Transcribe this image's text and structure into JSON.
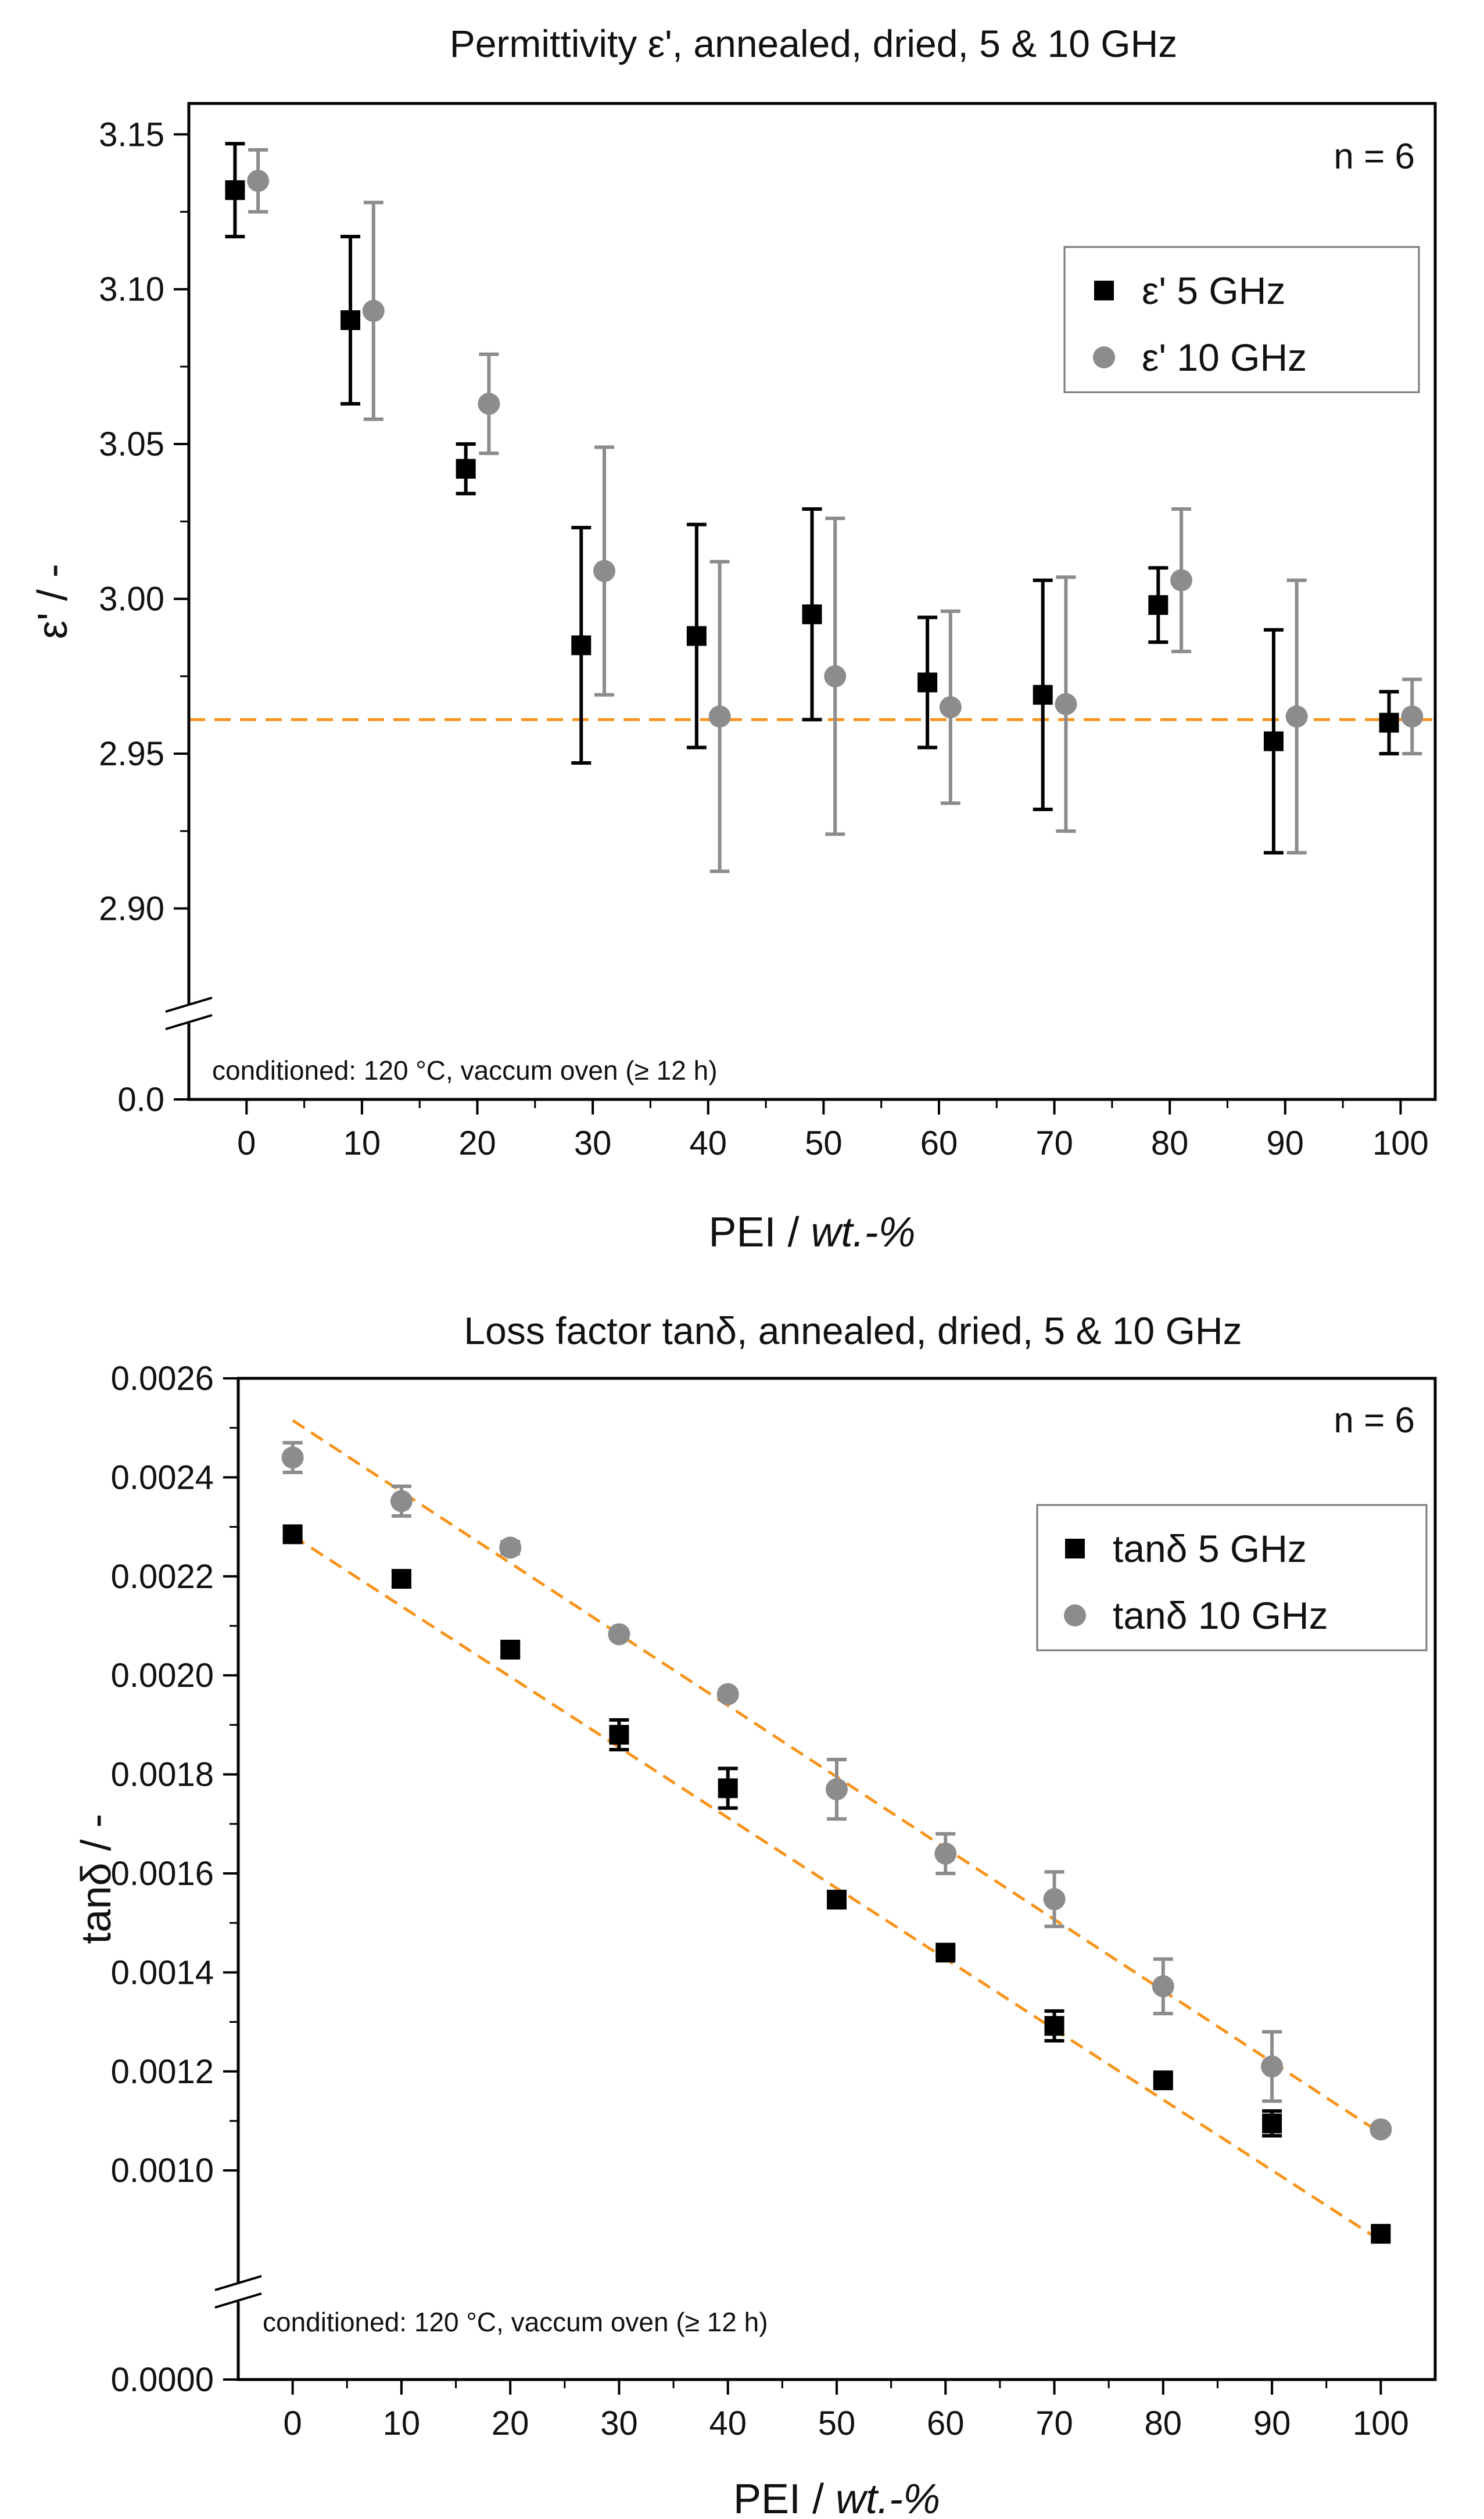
{
  "chart_data": [
    {
      "type": "scatter",
      "title": "Permittivity ε', annealed, dried, 5 & 10 GHz",
      "xlabel_main": "PEI  /  ",
      "xlabel_unit": "wt.-%",
      "ylabel": "ε' / -",
      "xlim": [
        -5,
        103
      ],
      "x_ticks": [
        0,
        10,
        20,
        30,
        40,
        50,
        60,
        70,
        80,
        90,
        100
      ],
      "ylim": [
        2.88,
        3.16
      ],
      "y_ticks": [
        2.9,
        2.95,
        3.0,
        3.05,
        3.1,
        3.15
      ],
      "y_tick_labels": [
        "2.90",
        "2.95",
        "3.00",
        "3.05",
        "3.10",
        "3.15"
      ],
      "y_break_value": 0.0,
      "y_break_label": "0.0",
      "annotation": "conditioned: 120 °C, vaccum oven (≥ 12 h)",
      "n_label": "n = 6",
      "legend_position": "upper-right",
      "reference_line": {
        "y": 2.961,
        "color": "#f7941d"
      },
      "series": [
        {
          "name": "ε'   5 GHz",
          "marker": "square",
          "color": "#000000",
          "x": [
            -1,
            9,
            19,
            29,
            39,
            49,
            59,
            69,
            79,
            89,
            99
          ],
          "values": [
            3.132,
            3.09,
            3.042,
            2.985,
            2.988,
            2.995,
            2.973,
            2.969,
            2.998,
            2.954,
            2.96
          ],
          "errors": [
            0.015,
            0.027,
            0.008,
            0.038,
            0.036,
            0.034,
            0.021,
            0.037,
            0.012,
            0.036,
            0.01
          ]
        },
        {
          "name": "ε' 10 GHz",
          "marker": "circle",
          "color": "#8c8c8c",
          "x": [
            1,
            11,
            21,
            31,
            41,
            51,
            61,
            71,
            81,
            91,
            101
          ],
          "values": [
            3.135,
            3.093,
            3.063,
            3.009,
            2.962,
            2.975,
            2.965,
            2.966,
            3.006,
            2.962,
            2.962
          ],
          "errors": [
            0.01,
            0.035,
            0.016,
            0.04,
            0.05,
            0.051,
            0.031,
            0.041,
            0.023,
            0.044,
            0.012
          ]
        }
      ]
    },
    {
      "type": "scatter",
      "title": "Loss factor tanδ, annealed, dried, 5 & 10 GHz",
      "xlabel_main": "PEI  /  ",
      "xlabel_unit": "wt.-%",
      "ylabel": "tanδ / -",
      "xlim": [
        -5,
        105
      ],
      "x_ticks": [
        0,
        10,
        20,
        30,
        40,
        50,
        60,
        70,
        80,
        90,
        100
      ],
      "ylim": [
        0.00083,
        0.0026
      ],
      "y_ticks": [
        0.001,
        0.0012,
        0.0014,
        0.0016,
        0.0018,
        0.002,
        0.0022,
        0.0024,
        0.0026
      ],
      "y_tick_labels": [
        "0.0010",
        "0.0012",
        "0.0014",
        "0.0016",
        "0.0018",
        "0.0020",
        "0.0022",
        "0.0024",
        "0.0026"
      ],
      "y_break_value": 0.0,
      "y_break_label": "0.0000",
      "annotation": "conditioned: 120 °C, vaccum oven (≥ 12 h)",
      "n_label": "n = 6",
      "legend_position": "upper-right",
      "fit_lines": [
        {
          "series": "5 GHz",
          "x": [
            0,
            100
          ],
          "y": [
            0.002282,
            0.000858
          ],
          "color": "#f7941d"
        },
        {
          "series": "10 GHz",
          "x": [
            0,
            100
          ],
          "y": [
            0.002515,
            0.001075
          ],
          "color": "#f7941d"
        }
      ],
      "series": [
        {
          "name": "tanδ   5 GHz",
          "marker": "square",
          "color": "#000000",
          "x": [
            0,
            10,
            20,
            30,
            40,
            50,
            60,
            70,
            80,
            90,
            100
          ],
          "values": [
            0.002285,
            0.002195,
            0.002052,
            0.00188,
            0.001772,
            0.001547,
            0.00144,
            0.001292,
            0.001182,
            0.001095,
            0.000872
          ],
          "errors": [
            1e-05,
            1.5e-05,
            1.2e-05,
            3e-05,
            4e-05,
            8e-06,
            6e-06,
            3e-05,
            1e-05,
            2.5e-05,
            1.2e-05
          ]
        },
        {
          "name": "tanδ 10 GHz",
          "marker": "circle",
          "color": "#8c8c8c",
          "x": [
            0,
            10,
            20,
            30,
            40,
            50,
            60,
            70,
            80,
            90,
            100
          ],
          "values": [
            0.00244,
            0.002352,
            0.002258,
            0.002083,
            0.001962,
            0.00177,
            0.00164,
            0.001548,
            0.001372,
            0.00121,
            0.001083
          ],
          "errors": [
            3e-05,
            3e-05,
            1.2e-05,
            8e-06,
            8e-06,
            6e-05,
            4e-05,
            5.5e-05,
            5.5e-05,
            7e-05,
            8e-06
          ]
        }
      ]
    }
  ]
}
